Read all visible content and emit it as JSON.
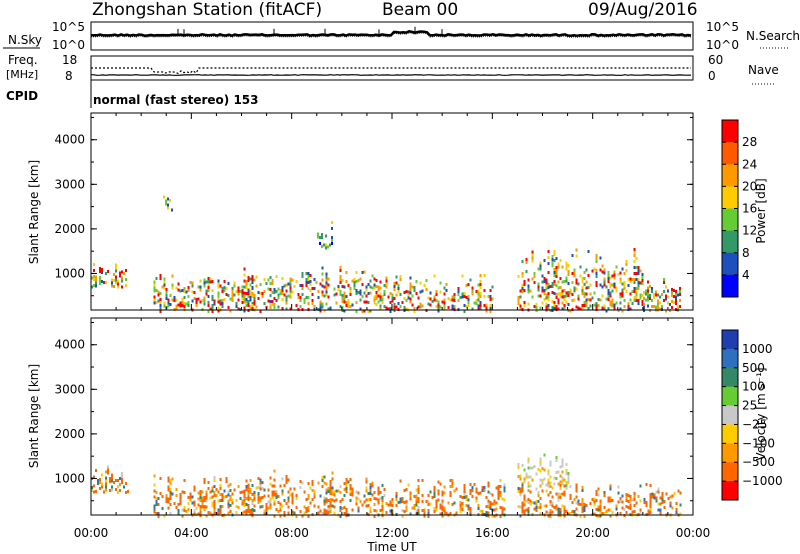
{
  "header": {
    "station": "Zhongshan Station (fitACF)",
    "beam": "Beam 00",
    "date": "09/Aug/2016"
  },
  "summary_panels": {
    "nsky_label": "N.Sky",
    "nsky_ticks": [
      "10^5",
      "10^0"
    ],
    "nsearch_label": "N.Search",
    "nsearch_ticks": [
      "10^5",
      "10^0"
    ],
    "freq_label": "Freq.",
    "freq_unit": "[MHz]",
    "freq_ticks": [
      "18",
      "8"
    ],
    "nave_label": "Nave",
    "nave_ticks": [
      "60",
      "0"
    ],
    "cpid_label": "CPID",
    "cpid_text": "normal (fast stereo) 153"
  },
  "power_colorbar": {
    "label": "Power [dB]",
    "ticks": [
      "28",
      "24",
      "20",
      "16",
      "12",
      "8",
      "4"
    ],
    "colors": [
      "#ff0000",
      "#ff5a00",
      "#ff9900",
      "#ffcc00",
      "#66cc33",
      "#339966",
      "#1f4fbf",
      "#0000ff"
    ]
  },
  "velocity_colorbar": {
    "label": "Velocity [m s⁻¹]",
    "ticks": [
      "1000",
      "500",
      "100",
      "25",
      "−25",
      "−100",
      "−500",
      "−1000"
    ],
    "colors": [
      "#1f3fb0",
      "#2f6fbf",
      "#338866",
      "#66cc33",
      "#c8c8c8",
      "#ffcc00",
      "#ff9900",
      "#ff6600",
      "#ff0000"
    ]
  },
  "chart_data": [
    {
      "type": "heatmap",
      "title": "Power",
      "ylabel": "Slant Range [km]",
      "xlabel": "Time UT",
      "xlim": [
        "00:00",
        "24:00"
      ],
      "ylim": [
        180,
        4600
      ],
      "x_ticks": [
        "00:00",
        "04:00",
        "08:00",
        "12:00",
        "16:00",
        "20:00",
        "00:00"
      ],
      "y_ticks": [
        1000,
        2000,
        3000,
        4000
      ],
      "grid": false,
      "echo_regions_approx": [
        {
          "t_start_h": 0.0,
          "t_end_h": 1.4,
          "range_km": [
            700,
            1250
          ],
          "level": "high"
        },
        {
          "t_start_h": 2.5,
          "t_end_h": 6.5,
          "range_km": [
            180,
            1000
          ],
          "level": "high"
        },
        {
          "t_start_h": 2.8,
          "t_end_h": 3.2,
          "range_km": [
            2400,
            2800
          ],
          "level": "medium"
        },
        {
          "t_start_h": 6.0,
          "t_end_h": 11.5,
          "range_km": [
            180,
            1200
          ],
          "level": "high"
        },
        {
          "t_start_h": 9.0,
          "t_end_h": 9.6,
          "range_km": [
            1600,
            2200
          ],
          "level": "medium"
        },
        {
          "t_start_h": 11.5,
          "t_end_h": 16.0,
          "range_km": [
            180,
            1000
          ],
          "level": "high"
        },
        {
          "t_start_h": 17.0,
          "t_end_h": 22.0,
          "range_km": [
            180,
            1600
          ],
          "level": "high"
        },
        {
          "t_start_h": 22.0,
          "t_end_h": 23.5,
          "range_km": [
            180,
            900
          ],
          "level": "high"
        }
      ]
    },
    {
      "type": "heatmap",
      "title": "Velocity",
      "ylabel": "Slant Range [km]",
      "xlabel": "Time UT",
      "xlim": [
        "00:00",
        "24:00"
      ],
      "ylim": [
        180,
        4600
      ],
      "x_ticks": [
        "00:00",
        "04:00",
        "08:00",
        "12:00",
        "16:00",
        "20:00",
        "00:00"
      ],
      "y_ticks": [
        1000,
        2000,
        3000,
        4000
      ],
      "grid": false,
      "echo_regions_approx": [
        {
          "t_start_h": 0.0,
          "t_end_h": 1.5,
          "range_km": [
            700,
            1300
          ],
          "velocity_ms": -100
        },
        {
          "t_start_h": 2.5,
          "t_end_h": 6.5,
          "range_km": [
            180,
            1100
          ],
          "velocity_ms": -100
        },
        {
          "t_start_h": 6.0,
          "t_end_h": 11.5,
          "range_km": [
            180,
            1200
          ],
          "velocity_ms": -100
        },
        {
          "t_start_h": 11.5,
          "t_end_h": 16.5,
          "range_km": [
            180,
            1000
          ],
          "velocity_ms": -100
        },
        {
          "t_start_h": 17.0,
          "t_end_h": 19.0,
          "range_km": [
            800,
            1600
          ],
          "velocity_ms": 0
        },
        {
          "t_start_h": 17.0,
          "t_end_h": 23.5,
          "range_km": [
            180,
            900
          ],
          "velocity_ms": -100
        }
      ]
    }
  ]
}
